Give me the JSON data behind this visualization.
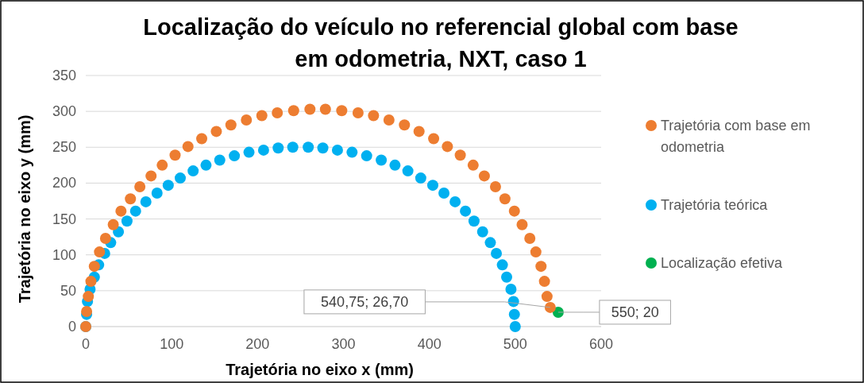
{
  "chart_data": {
    "type": "scatter",
    "title": "Localização do veículo no referencial global com base em odometria, NXT, caso 1",
    "xlabel": "Trajetória no eixo x (mm)",
    "ylabel": "Trajetória no eixo y (mm)",
    "xlim": [
      0,
      600
    ],
    "xticks": [
      0,
      100,
      200,
      300,
      400,
      500,
      600
    ],
    "ylim": [
      0,
      350
    ],
    "yticks": [
      0,
      50,
      100,
      150,
      200,
      250,
      300,
      350
    ],
    "grid": "y",
    "legend": "right",
    "marker": "circle",
    "series": [
      {
        "name": "Trajetória com base em odometria",
        "color": "#ed7d31",
        "x": [
          0,
          1,
          3,
          6,
          10,
          16,
          23,
          32,
          41,
          52,
          63,
          76,
          89,
          104,
          119,
          135,
          152,
          169,
          187,
          205,
          223,
          242,
          261,
          279,
          298,
          317,
          335,
          353,
          371,
          388,
          405,
          421,
          436,
          451,
          464,
          477,
          488,
          499,
          508,
          517,
          524,
          530,
          534,
          537,
          540.75
        ],
        "values": [
          0,
          21,
          42,
          63,
          84,
          104,
          123,
          142,
          161,
          178,
          195,
          210,
          225,
          239,
          251,
          262,
          272,
          281,
          288,
          294,
          298,
          301,
          303,
          303,
          301,
          298,
          294,
          288,
          281,
          272,
          262,
          251,
          239,
          225,
          210,
          195,
          178,
          161,
          142,
          123,
          104,
          84,
          63,
          42,
          26.7
        ]
      },
      {
        "name": "Trajetória teórica",
        "color": "#00b0f0",
        "x": [
          0,
          1,
          2,
          5,
          10,
          15,
          22,
          29,
          38,
          48,
          58,
          70,
          83,
          96,
          110,
          125,
          140,
          156,
          173,
          190,
          207,
          224,
          241,
          259,
          276,
          293,
          310,
          327,
          344,
          360,
          375,
          390,
          404,
          417,
          430,
          442,
          452,
          462,
          471,
          478,
          485,
          490,
          495,
          498,
          499,
          500
        ],
        "values": [
          0,
          17,
          35,
          52,
          69,
          86,
          102,
          117,
          132,
          147,
          161,
          174,
          186,
          197,
          207,
          217,
          225,
          232,
          238,
          243,
          246,
          249,
          250,
          250,
          249,
          246,
          243,
          238,
          232,
          225,
          217,
          207,
          197,
          186,
          174,
          161,
          147,
          132,
          117,
          102,
          86,
          69,
          52,
          35,
          17,
          0
        ]
      },
      {
        "name": "Localização efetiva",
        "color": "#00b050",
        "x": [
          550
        ],
        "values": [
          20
        ]
      }
    ],
    "annotations": [
      {
        "text": "540,75; 26,70",
        "x": 540.75,
        "y": 26.7
      },
      {
        "text": "550; 20",
        "x": 550,
        "y": 20
      }
    ]
  }
}
